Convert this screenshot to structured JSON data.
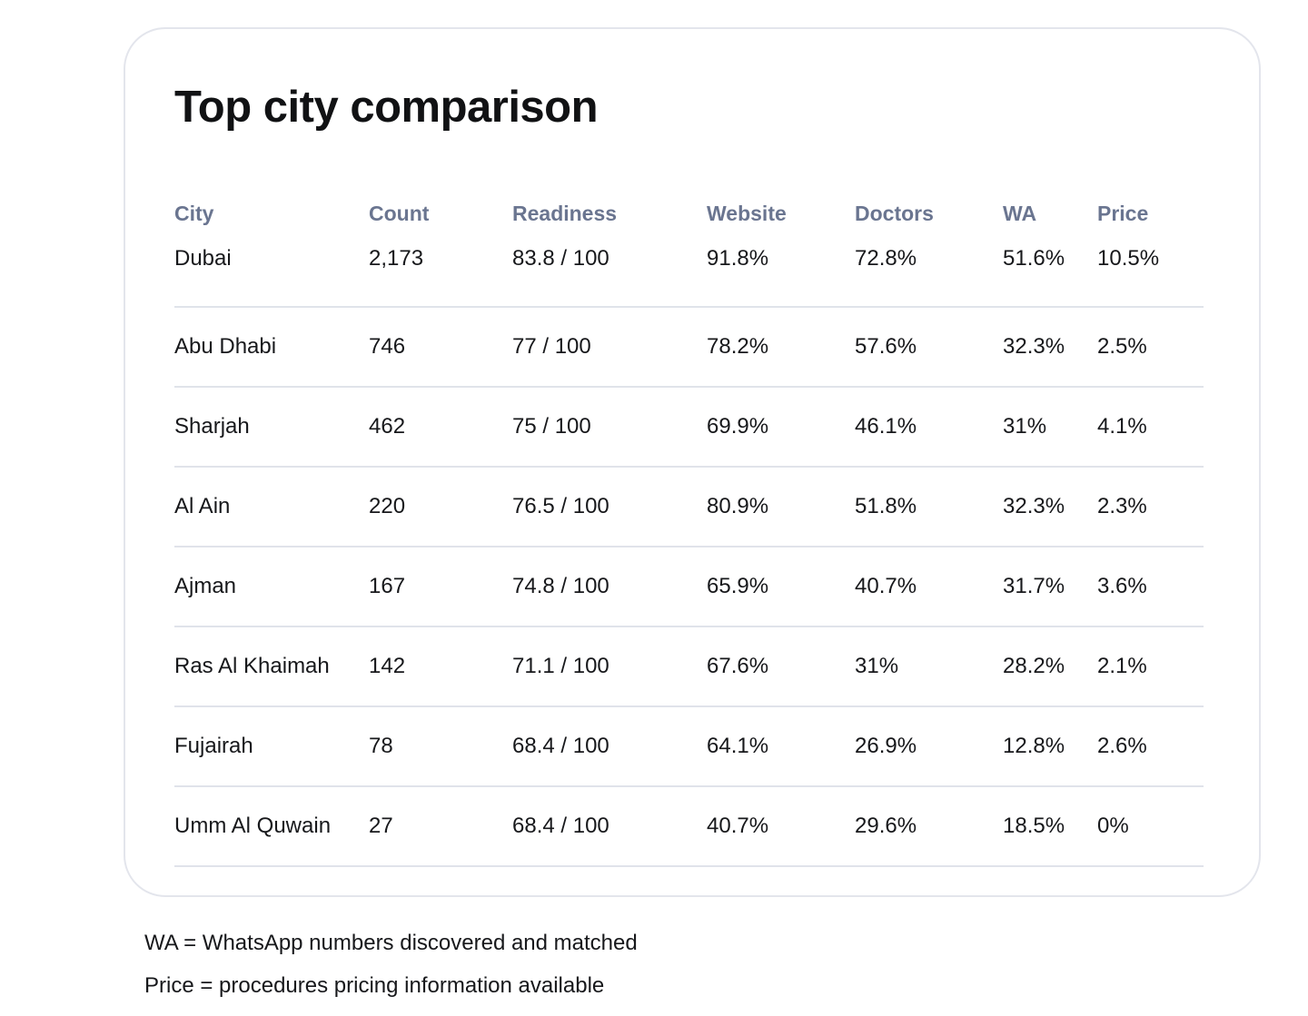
{
  "card": {
    "title": "Top city comparison"
  },
  "table": {
    "headers": {
      "city": "City",
      "count": "Count",
      "readiness": "Readiness",
      "website": "Website",
      "doctors": "Doctors",
      "wa": "WA",
      "price": "Price"
    },
    "rows": [
      {
        "city": "Dubai",
        "count": "2,173",
        "readiness": "83.8 / 100",
        "website": "91.8%",
        "doctors": "72.8%",
        "wa": "51.6%",
        "price": "10.5%"
      },
      {
        "city": "Abu Dhabi",
        "count": "746",
        "readiness": "77 / 100",
        "website": "78.2%",
        "doctors": "57.6%",
        "wa": "32.3%",
        "price": "2.5%"
      },
      {
        "city": "Sharjah",
        "count": "462",
        "readiness": "75 / 100",
        "website": "69.9%",
        "doctors": "46.1%",
        "wa": "31%",
        "price": "4.1%"
      },
      {
        "city": "Al Ain",
        "count": "220",
        "readiness": "76.5 / 100",
        "website": "80.9%",
        "doctors": "51.8%",
        "wa": "32.3%",
        "price": "2.3%"
      },
      {
        "city": "Ajman",
        "count": "167",
        "readiness": "74.8 / 100",
        "website": "65.9%",
        "doctors": "40.7%",
        "wa": "31.7%",
        "price": "3.6%"
      },
      {
        "city": "Ras Al Khaimah",
        "count": "142",
        "readiness": "71.1 / 100",
        "website": "67.6%",
        "doctors": "31%",
        "wa": "28.2%",
        "price": "2.1%"
      },
      {
        "city": "Fujairah",
        "count": "78",
        "readiness": "68.4 / 100",
        "website": "64.1%",
        "doctors": "26.9%",
        "wa": "12.8%",
        "price": "2.6%"
      },
      {
        "city": "Umm Al Quwain",
        "count": "27",
        "readiness": "68.4 / 100",
        "website": "40.7%",
        "doctors": "29.6%",
        "wa": "18.5%",
        "price": "0%"
      }
    ]
  },
  "footnotes": {
    "wa": "WA = WhatsApp numbers discovered and matched",
    "price": "Price = procedures pricing information available"
  }
}
